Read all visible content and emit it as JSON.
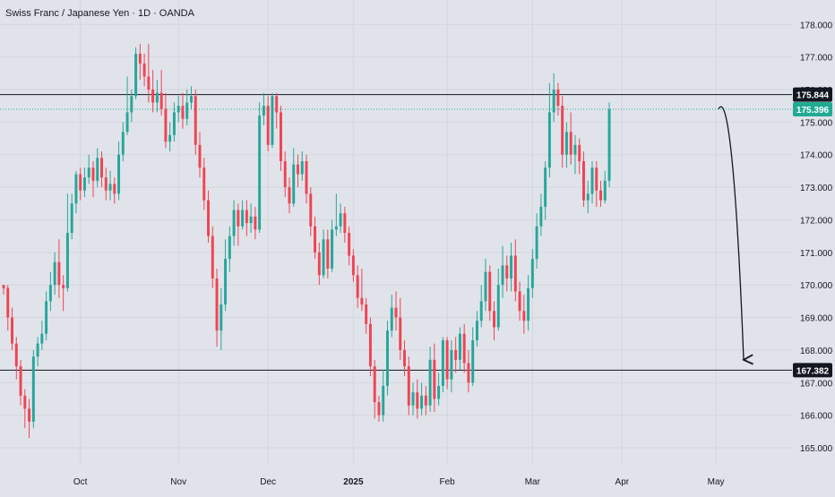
{
  "title": "Swiss Franc / Japanese Yen · 1D · OANDA",
  "colors": {
    "background": "#e1e3ea",
    "grid": "#d4d6de",
    "up": "#26a69a",
    "down": "#ef4452",
    "text": "#131722",
    "level": "#131722",
    "current": "#22ab94"
  },
  "chart_data": {
    "type": "candlestick",
    "symbol": "CHF/JPY",
    "timeframe": "1D",
    "source": "OANDA",
    "ylim": [
      164.45,
      178.75
    ],
    "y_ticks": [
      "165.000",
      "166.000",
      "167.000",
      "168.000",
      "169.000",
      "170.000",
      "171.000",
      "172.000",
      "173.000",
      "174.000",
      "175.000",
      "176.000",
      "177.000",
      "178.000"
    ],
    "x_ticks": [
      "Oct",
      "Nov",
      "Dec",
      "2025",
      "Feb",
      "Mar",
      "Apr",
      "May"
    ],
    "grid": true,
    "x_range": [
      0,
      184
    ],
    "x_tick_positions": [
      18,
      41,
      62,
      82,
      104,
      124,
      145,
      167
    ],
    "horizontal_levels": [
      {
        "label": "175.844",
        "value": 175.844,
        "style": "solid"
      },
      {
        "label": "167.382",
        "value": 167.382,
        "style": "solid"
      }
    ],
    "current_price": {
      "label": "175.396",
      "value": 175.396,
      "style": "dotted"
    },
    "projection": {
      "type": "arrow",
      "points": [
        [
          167.6,
          175.4
        ],
        [
          170.0,
          176.0
        ],
        [
          172.0,
          172.8
        ],
        [
          173.5,
          167.7
        ]
      ]
    },
    "candles": [
      [
        0,
        170.0,
        169.9,
        170.0,
        169.7
      ],
      [
        1,
        169.9,
        169.0,
        170.0,
        168.6
      ],
      [
        2,
        169.0,
        168.2,
        169.3,
        168.0
      ],
      [
        3,
        168.2,
        167.5,
        168.4,
        167.1
      ],
      [
        4,
        167.5,
        166.6,
        167.7,
        166.3
      ],
      [
        5,
        166.6,
        166.2,
        166.8,
        165.6
      ],
      [
        6,
        166.2,
        165.8,
        166.5,
        165.3
      ],
      [
        7,
        165.8,
        167.8,
        168.0,
        165.6
      ],
      [
        8,
        167.8,
        168.2,
        168.4,
        167.5
      ],
      [
        9,
        168.2,
        168.5,
        168.9,
        168.0
      ],
      [
        10,
        168.5,
        169.5,
        169.8,
        168.3
      ],
      [
        11,
        169.5,
        170.0,
        170.4,
        169.2
      ],
      [
        12,
        170.0,
        170.7,
        171.0,
        169.7
      ],
      [
        13,
        170.7,
        170.0,
        171.4,
        169.6
      ],
      [
        14,
        170.0,
        169.9,
        170.3,
        169.2
      ],
      [
        15,
        169.9,
        171.6,
        172.8,
        169.8
      ],
      [
        16,
        171.6,
        172.5,
        172.8,
        171.4
      ],
      [
        17,
        172.5,
        173.4,
        173.5,
        172.2
      ],
      [
        18,
        173.4,
        172.9,
        173.6,
        172.6
      ],
      [
        19,
        172.9,
        173.3,
        173.6,
        172.7
      ],
      [
        20,
        173.3,
        173.6,
        174.0,
        173.1
      ],
      [
        21,
        173.6,
        173.2,
        173.8,
        172.7
      ],
      [
        22,
        173.2,
        173.9,
        174.2,
        173.0
      ],
      [
        23,
        173.9,
        173.3,
        174.1,
        173.0
      ],
      [
        24,
        173.3,
        172.9,
        173.6,
        172.6
      ],
      [
        25,
        172.9,
        173.1,
        173.5,
        172.6
      ],
      [
        26,
        173.1,
        172.8,
        173.3,
        172.5
      ],
      [
        27,
        172.8,
        174.0,
        174.4,
        172.6
      ],
      [
        28,
        174.0,
        174.7,
        175.0,
        173.8
      ],
      [
        29,
        174.7,
        175.3,
        176.4,
        174.6
      ],
      [
        30,
        175.3,
        175.8,
        176.0,
        175.0
      ],
      [
        31,
        175.8,
        177.1,
        177.3,
        175.7
      ],
      [
        32,
        177.1,
        176.8,
        177.4,
        176.3
      ],
      [
        33,
        176.8,
        176.4,
        177.1,
        176.1
      ],
      [
        34,
        176.4,
        176.0,
        177.4,
        175.6
      ],
      [
        35,
        176.0,
        175.6,
        176.6,
        175.3
      ],
      [
        36,
        175.6,
        175.9,
        176.3,
        175.3
      ],
      [
        37,
        175.9,
        175.4,
        176.6,
        175.2
      ],
      [
        38,
        175.4,
        174.4,
        175.9,
        174.2
      ],
      [
        39,
        174.4,
        174.6,
        175.0,
        174.1
      ],
      [
        40,
        174.6,
        175.3,
        175.6,
        174.4
      ],
      [
        41,
        175.3,
        175.5,
        175.8,
        175.0
      ],
      [
        42,
        175.5,
        175.1,
        175.9,
        174.8
      ],
      [
        43,
        175.1,
        175.6,
        176.0,
        174.9
      ],
      [
        44,
        175.6,
        175.8,
        176.1,
        175.4
      ],
      [
        45,
        175.8,
        174.3,
        176.0,
        174.0
      ],
      [
        46,
        174.3,
        173.6,
        174.7,
        173.3
      ],
      [
        47,
        173.6,
        172.6,
        173.9,
        172.3
      ],
      [
        48,
        172.6,
        171.5,
        172.9,
        171.3
      ],
      [
        49,
        171.5,
        170.2,
        171.8,
        169.9
      ],
      [
        50,
        170.2,
        168.6,
        170.5,
        168.1
      ],
      [
        51,
        168.6,
        169.4,
        169.9,
        168.0
      ],
      [
        52,
        169.4,
        170.8,
        171.4,
        169.2
      ],
      [
        53,
        170.8,
        171.5,
        171.8,
        170.4
      ],
      [
        54,
        171.5,
        172.3,
        172.6,
        171.2
      ],
      [
        55,
        172.3,
        171.8,
        172.5,
        171.2
      ],
      [
        56,
        171.8,
        172.3,
        172.6,
        171.7
      ],
      [
        57,
        172.3,
        171.9,
        172.6,
        171.5
      ],
      [
        58,
        171.9,
        172.1,
        172.5,
        171.6
      ],
      [
        59,
        172.1,
        171.7,
        172.4,
        171.4
      ],
      [
        60,
        171.7,
        175.2,
        175.6,
        171.6
      ],
      [
        61,
        175.2,
        175.5,
        175.9,
        174.9
      ],
      [
        62,
        175.5,
        174.3,
        175.8,
        174.1
      ],
      [
        63,
        174.3,
        175.8,
        175.9,
        174.2
      ],
      [
        64,
        175.8,
        175.3,
        175.9,
        174.8
      ],
      [
        65,
        175.3,
        173.8,
        175.5,
        173.5
      ],
      [
        66,
        173.8,
        173.0,
        174.1,
        172.7
      ],
      [
        67,
        173.0,
        172.5,
        173.3,
        172.2
      ],
      [
        68,
        172.5,
        173.7,
        174.2,
        172.4
      ],
      [
        69,
        173.7,
        173.4,
        174.0,
        173.0
      ],
      [
        70,
        173.4,
        173.8,
        174.1,
        173.2
      ],
      [
        71,
        173.8,
        172.8,
        174.0,
        172.5
      ],
      [
        72,
        172.8,
        171.8,
        173.0,
        171.5
      ],
      [
        73,
        171.8,
        171.0,
        172.1,
        170.8
      ],
      [
        74,
        171.0,
        170.3,
        171.3,
        170.0
      ],
      [
        75,
        170.3,
        171.4,
        171.7,
        170.2
      ],
      [
        76,
        171.4,
        170.5,
        171.7,
        170.2
      ],
      [
        77,
        170.5,
        171.7,
        172.0,
        170.4
      ],
      [
        78,
        171.7,
        171.8,
        172.8,
        171.5
      ],
      [
        79,
        171.8,
        172.2,
        172.5,
        171.6
      ],
      [
        80,
        172.2,
        171.6,
        172.4,
        171.3
      ],
      [
        81,
        171.6,
        170.9,
        171.8,
        170.6
      ],
      [
        82,
        170.9,
        170.3,
        171.1,
        170.1
      ],
      [
        83,
        170.3,
        169.6,
        170.6,
        169.3
      ],
      [
        84,
        169.6,
        169.4,
        170.5,
        169.2
      ],
      [
        85,
        169.4,
        168.8,
        169.6,
        168.5
      ],
      [
        86,
        168.8,
        167.5,
        169.0,
        167.2
      ],
      [
        87,
        167.5,
        166.4,
        167.7,
        165.9
      ],
      [
        88,
        166.4,
        166.0,
        166.6,
        165.8
      ],
      [
        89,
        166.0,
        166.9,
        167.4,
        165.8
      ],
      [
        90,
        166.9,
        168.6,
        168.9,
        166.6
      ],
      [
        91,
        168.6,
        169.3,
        169.7,
        168.4
      ],
      [
        92,
        169.3,
        169.0,
        169.8,
        168.6
      ],
      [
        93,
        169.0,
        168.0,
        169.6,
        167.7
      ],
      [
        94,
        168.0,
        167.5,
        168.3,
        167.2
      ],
      [
        95,
        167.5,
        166.3,
        167.8,
        166.0
      ],
      [
        96,
        166.3,
        166.7,
        167.0,
        166.0
      ],
      [
        97,
        166.7,
        166.2,
        167.1,
        165.9
      ],
      [
        98,
        166.2,
        166.6,
        167.0,
        166.0
      ],
      [
        99,
        166.6,
        166.3,
        166.9,
        166.0
      ],
      [
        100,
        166.3,
        167.7,
        168.1,
        166.1
      ],
      [
        101,
        167.7,
        166.5,
        168.2,
        166.1
      ],
      [
        102,
        166.5,
        166.9,
        167.3,
        166.3
      ],
      [
        103,
        166.9,
        168.3,
        168.4,
        166.7
      ],
      [
        104,
        168.3,
        167.1,
        168.4,
        166.8
      ],
      [
        105,
        167.1,
        168.0,
        168.3,
        166.7
      ],
      [
        106,
        168.0,
        167.7,
        168.4,
        167.3
      ],
      [
        107,
        167.7,
        168.5,
        168.7,
        167.4
      ],
      [
        108,
        168.5,
        167.6,
        168.8,
        167.3
      ],
      [
        109,
        167.6,
        167.0,
        168.0,
        166.7
      ],
      [
        110,
        167.0,
        168.3,
        168.7,
        166.9
      ],
      [
        111,
        168.3,
        168.9,
        169.2,
        168.1
      ],
      [
        112,
        168.9,
        169.5,
        170.0,
        168.7
      ],
      [
        113,
        169.5,
        170.4,
        170.8,
        169.2
      ],
      [
        114,
        170.4,
        169.2,
        170.6,
        168.9
      ],
      [
        115,
        169.2,
        168.7,
        169.5,
        168.3
      ],
      [
        116,
        168.7,
        170.0,
        170.5,
        168.6
      ],
      [
        117,
        170.0,
        170.6,
        171.2,
        169.6
      ],
      [
        118,
        170.6,
        170.2,
        170.9,
        169.8
      ],
      [
        119,
        170.2,
        170.9,
        171.3,
        169.8
      ],
      [
        120,
        170.9,
        169.8,
        171.4,
        169.5
      ],
      [
        121,
        169.8,
        169.2,
        170.1,
        168.9
      ],
      [
        122,
        169.2,
        168.9,
        169.7,
        168.5
      ],
      [
        123,
        168.9,
        169.9,
        170.3,
        168.6
      ],
      [
        124,
        169.9,
        170.8,
        171.1,
        169.6
      ],
      [
        125,
        170.8,
        171.8,
        172.2,
        170.5
      ],
      [
        126,
        171.8,
        172.4,
        172.8,
        171.5
      ],
      [
        127,
        172.4,
        173.6,
        173.8,
        172.0
      ],
      [
        128,
        173.6,
        175.3,
        176.2,
        173.3
      ],
      [
        129,
        175.3,
        176.0,
        176.5,
        175.0
      ],
      [
        130,
        176.0,
        175.5,
        176.2,
        175.2
      ],
      [
        131,
        175.5,
        174.0,
        175.8,
        173.6
      ],
      [
        132,
        174.0,
        174.7,
        175.0,
        173.6
      ],
      [
        133,
        174.7,
        174.0,
        175.3,
        173.7
      ],
      [
        134,
        174.0,
        174.3,
        174.6,
        173.4
      ],
      [
        135,
        174.3,
        173.8,
        174.5,
        173.4
      ],
      [
        136,
        173.8,
        172.6,
        174.1,
        172.4
      ],
      [
        137,
        172.6,
        172.8,
        173.2,
        172.2
      ],
      [
        138,
        172.8,
        173.6,
        173.8,
        172.5
      ],
      [
        139,
        173.6,
        172.9,
        173.8,
        172.4
      ],
      [
        140,
        172.9,
        172.6,
        173.2,
        172.4
      ],
      [
        141,
        172.6,
        173.2,
        173.5,
        172.5
      ],
      [
        142,
        173.2,
        175.4,
        175.6,
        173.0
      ]
    ]
  }
}
